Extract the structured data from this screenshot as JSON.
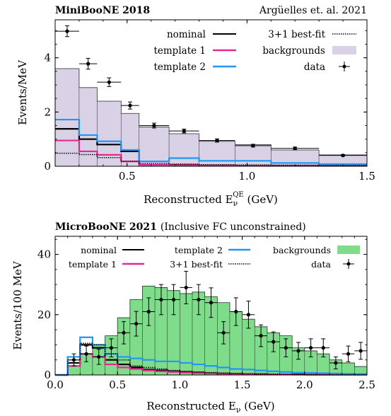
{
  "chart_data": [
    {
      "type": "histogram",
      "title": "MiniBooNE 2018",
      "title_right": "Argüelles et. al. 2021",
      "xlabel_main": "Reconstructed E",
      "xlabel_sub": "ν",
      "xlabel_sup": "QE",
      "xlabel_unit": " (GeV)",
      "ylabel": "Events/MeV",
      "xlim": [
        0.2,
        1.5
      ],
      "ylim": [
        0,
        5.4
      ],
      "xticks": [
        0.5,
        1.0,
        1.5
      ],
      "xtick_labels": [
        "0.5",
        "1.0",
        "1.5"
      ],
      "yticks": [
        0,
        2,
        4
      ],
      "ytick_labels": [
        "0",
        "2",
        "4"
      ],
      "bin_edges": [
        0.2,
        0.3,
        0.375,
        0.475,
        0.55,
        0.675,
        0.8,
        0.95,
        1.1,
        1.3,
        1.5
      ],
      "series": [
        {
          "name": "backgrounds",
          "kind": "filled",
          "color": "#d9d2e6",
          "values": [
            3.6,
            2.9,
            2.4,
            1.95,
            1.45,
            1.2,
            0.92,
            0.8,
            0.6,
            0.42
          ]
        },
        {
          "name": "nominal",
          "kind": "step",
          "color": "#000000",
          "values": [
            1.38,
            1.0,
            0.8,
            0.55,
            0.05,
            0.05,
            0.03,
            0.02,
            0.02,
            0.02
          ]
        },
        {
          "name": "template 1",
          "kind": "step",
          "color": "#e8288f",
          "values": [
            0.95,
            0.55,
            0.42,
            0.18,
            0.05,
            0.04,
            0.03,
            0.02,
            0.02,
            0.02
          ]
        },
        {
          "name": "template 2",
          "kind": "step",
          "color": "#2196f3",
          "values": [
            1.72,
            1.15,
            0.92,
            0.6,
            0.18,
            0.3,
            0.2,
            0.2,
            0.12,
            0.08
          ]
        },
        {
          "name": "3+1 best-fit",
          "kind": "dotted",
          "color": "#000000",
          "values": [
            0.48,
            0.43,
            0.32,
            0.18,
            0.1,
            0.08,
            0.06,
            0.05,
            0.04,
            0.03
          ]
        }
      ],
      "data_points": {
        "name": "data",
        "x": [
          0.25,
          0.3375,
          0.425,
          0.5125,
          0.6125,
          0.7375,
          0.875,
          1.025,
          1.2,
          1.4
        ],
        "y": [
          4.98,
          3.78,
          3.1,
          2.24,
          1.5,
          1.3,
          0.95,
          0.76,
          0.66,
          0.4
        ],
        "yerr": [
          0.2,
          0.2,
          0.16,
          0.13,
          0.09,
          0.07,
          0.06,
          0.05,
          0.05,
          0.03
        ]
      },
      "legend_left": [
        "nominal",
        "template 1",
        "template 2"
      ],
      "legend_right": [
        "3+1 best-fit",
        "backgrounds",
        "data"
      ],
      "legend_placement": "top-right"
    },
    {
      "type": "histogram",
      "title": "MicroBooNE 2021",
      "title_suffix": "(Inclusive FC unconstrained)",
      "xlabel_main": "Reconstructed E",
      "xlabel_sub": "ν",
      "xlabel_unit": " (GeV)",
      "ylabel": "Events/100 MeV",
      "xlim": [
        0.0,
        2.5
      ],
      "ylim": [
        0,
        46
      ],
      "xticks": [
        0.0,
        0.5,
        1.0,
        1.5,
        2.0,
        2.5
      ],
      "xtick_labels": [
        "0.0",
        "0.5",
        "1.0",
        "1.5",
        "2.0",
        "2.5"
      ],
      "yticks": [
        0,
        20,
        40
      ],
      "ytick_labels": [
        "0",
        "20",
        "40"
      ],
      "bin_edges": [
        0.0,
        0.1,
        0.2,
        0.3,
        0.4,
        0.5,
        0.6,
        0.7,
        0.8,
        0.9,
        1.0,
        1.1,
        1.2,
        1.3,
        1.4,
        1.5,
        1.6,
        1.7,
        1.8,
        1.9,
        2.0,
        2.1,
        2.2,
        2.3,
        2.4,
        2.5
      ],
      "series": [
        {
          "name": "backgrounds",
          "kind": "filled",
          "color": "#7fdc8a",
          "values": [
            0,
            3,
            7,
            10,
            13,
            19,
            25,
            29.5,
            29,
            28,
            27,
            27.5,
            26,
            24,
            21,
            18.5,
            16,
            14,
            13,
            9,
            8,
            7,
            5,
            4,
            2.8
          ]
        },
        {
          "name": "nominal",
          "kind": "step",
          "color": "#000000",
          "values": [
            0,
            4,
            10,
            9,
            5,
            3.5,
            2.5,
            1.8,
            1.5,
            1.2,
            1.0,
            0.8,
            0.6,
            0.5,
            0.4,
            0.3,
            0.3,
            0.2,
            0.2,
            0.2,
            0.1,
            0.1,
            0.1,
            0.1,
            0.1
          ]
        },
        {
          "name": "template 1",
          "kind": "step",
          "color": "#e8288f",
          "values": [
            0,
            3,
            7,
            6,
            3.5,
            2.5,
            2.0,
            1.5,
            1.2,
            1.0,
            0.8,
            0.6,
            0.5,
            0.4,
            0.3,
            0.3,
            0.2,
            0.2,
            0.2,
            0.1,
            0.1,
            0.1,
            0.1,
            0.1,
            0.1
          ]
        },
        {
          "name": "template 2",
          "kind": "step",
          "color": "#2196f3",
          "values": [
            0,
            6,
            12.5,
            10,
            7,
            6,
            5.5,
            5,
            4.5,
            4.5,
            4,
            3.5,
            3,
            2.5,
            2,
            1.8,
            1.5,
            1.2,
            1.0,
            0.8,
            0.7,
            0.6,
            0.5,
            0.4,
            0.3
          ]
        },
        {
          "name": "3+1 best-fit",
          "kind": "dotted",
          "color": "#000000",
          "values": [
            0,
            5,
            10.5,
            10,
            7,
            5,
            3,
            2.5,
            2,
            1.5,
            1.2,
            1.0,
            0.8,
            0.6,
            0.5,
            0.4,
            0.3,
            0.3,
            0.2,
            0.2,
            0.2,
            0.1,
            0.1,
            0.1,
            0.1
          ]
        }
      ],
      "data_points": {
        "name": "data",
        "x": [
          0.15,
          0.25,
          0.35,
          0.45,
          0.55,
          0.65,
          0.75,
          0.85,
          0.95,
          1.05,
          1.15,
          1.25,
          1.35,
          1.45,
          1.55,
          1.65,
          1.75,
          1.85,
          1.95,
          2.05,
          2.15,
          2.25,
          2.35,
          2.45
        ],
        "y": [
          5,
          7,
          6,
          9,
          14,
          17,
          21,
          25,
          25,
          29,
          25,
          24,
          14,
          21,
          20,
          13,
          11,
          9,
          8,
          9,
          9,
          4,
          7,
          8
        ],
        "yerr": [
          2,
          2.6,
          2.5,
          3,
          3.7,
          4.1,
          4.6,
          5,
          5,
          5.4,
          5,
          4.9,
          3.7,
          4.6,
          4.5,
          3.6,
          3.3,
          3,
          2.8,
          3,
          3,
          2,
          2.6,
          2.8
        ]
      },
      "legend_rows": [
        [
          "nominal",
          "template 2",
          "backgrounds"
        ],
        [
          "template 1",
          "3+1 best-fit",
          "data"
        ]
      ],
      "legend_placement": "top"
    }
  ]
}
